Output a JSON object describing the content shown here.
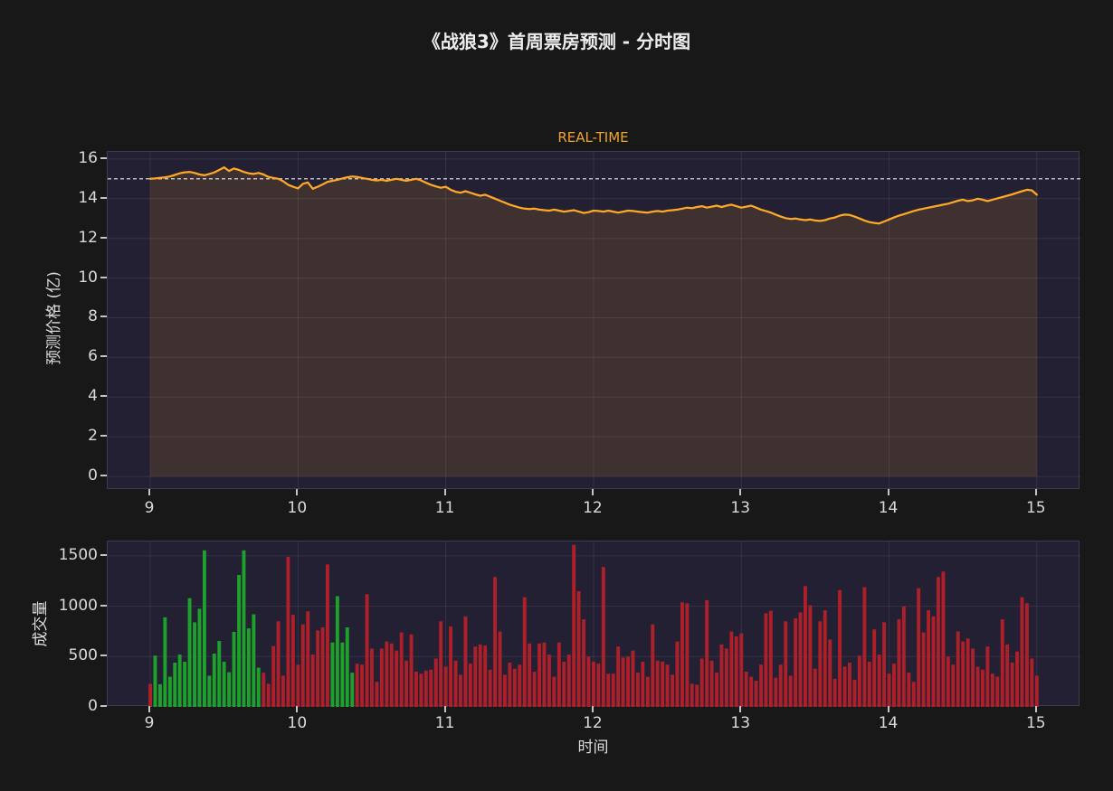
{
  "title": "《战狼3》首周票房预测 - 分时图",
  "accent_colors": {
    "line_orange": "#ffa826",
    "bar_up_green": "#1da12b",
    "bar_down_red": "#ad1f29",
    "plot_background": "#222032",
    "figure_background": "#181818",
    "reference_dash": "#eceef2"
  },
  "chart_data": [
    {
      "type": "line",
      "title_label": "REAL-TIME",
      "ylabel": "预测价格 (亿)",
      "x_start_hour": 9,
      "x_step_minutes": 2,
      "x_ticks": [
        9,
        10,
        11,
        12,
        13,
        14,
        15
      ],
      "y_ticks": [
        0,
        2,
        4,
        6,
        8,
        10,
        12,
        14,
        16
      ],
      "x_range_hours": [
        8.712,
        15.295
      ],
      "y_range": [
        -0.68,
        16.36
      ],
      "reference_line_y": 15,
      "line_color": "#ffa826",
      "fill_color": "rgba(255,168,38,0.13)",
      "grid": true,
      "values": [
        15.0,
        15.02,
        15.05,
        15.08,
        15.12,
        15.2,
        15.28,
        15.33,
        15.35,
        15.3,
        15.22,
        15.18,
        15.25,
        15.32,
        15.45,
        15.58,
        15.4,
        15.52,
        15.45,
        15.35,
        15.28,
        15.25,
        15.3,
        15.22,
        15.1,
        15.05,
        15.0,
        14.88,
        14.7,
        14.6,
        14.52,
        14.75,
        14.82,
        14.5,
        14.6,
        14.72,
        14.85,
        14.9,
        14.95,
        15.02,
        15.08,
        15.12,
        15.1,
        15.05,
        15.0,
        14.95,
        14.92,
        14.95,
        14.9,
        14.95,
        15.0,
        14.95,
        14.9,
        14.95,
        15.0,
        14.92,
        14.8,
        14.7,
        14.62,
        14.55,
        14.6,
        14.45,
        14.35,
        14.3,
        14.38,
        14.3,
        14.22,
        14.15,
        14.2,
        14.1,
        14.0,
        13.9,
        13.8,
        13.7,
        13.62,
        13.55,
        13.5,
        13.48,
        13.5,
        13.45,
        13.42,
        13.4,
        13.45,
        13.4,
        13.35,
        13.38,
        13.42,
        13.35,
        13.28,
        13.32,
        13.4,
        13.38,
        13.35,
        13.4,
        13.35,
        13.3,
        13.35,
        13.4,
        13.38,
        13.35,
        13.32,
        13.3,
        13.35,
        13.38,
        13.35,
        13.4,
        13.42,
        13.45,
        13.5,
        13.55,
        13.52,
        13.58,
        13.62,
        13.55,
        13.6,
        13.65,
        13.58,
        13.65,
        13.7,
        13.62,
        13.55,
        13.6,
        13.65,
        13.55,
        13.45,
        13.38,
        13.3,
        13.2,
        13.1,
        13.02,
        12.98,
        13.0,
        12.95,
        12.92,
        12.95,
        12.9,
        12.88,
        12.92,
        13.0,
        13.05,
        13.15,
        13.2,
        13.18,
        13.1,
        13.0,
        12.9,
        12.82,
        12.78,
        12.75,
        12.85,
        12.95,
        13.05,
        13.15,
        13.22,
        13.3,
        13.38,
        13.45,
        13.5,
        13.55,
        13.6,
        13.65,
        13.7,
        13.75,
        13.82,
        13.9,
        13.95,
        13.88,
        13.92,
        14.0,
        13.95,
        13.88,
        13.95,
        14.02,
        14.08,
        14.15,
        14.22,
        14.3,
        14.38,
        14.45,
        14.42,
        14.2
      ]
    },
    {
      "type": "bar",
      "ylabel": "成交量",
      "xlabel": "时间",
      "x_start_hour": 9,
      "x_step_minutes": 2,
      "x_ticks": [
        9,
        10,
        11,
        12,
        13,
        14,
        15
      ],
      "y_ticks": [
        0,
        500,
        1000,
        1500
      ],
      "x_range_hours": [
        8.712,
        15.295
      ],
      "y_range": [
        0,
        1643
      ],
      "up_color": "#1da12b",
      "down_color": "#ad1f29",
      "green_bar_index_ranges": [
        [
          1,
          22
        ],
        [
          37,
          41
        ]
      ],
      "grid": true,
      "values": [
        230,
        510,
        225,
        890,
        300,
        440,
        520,
        450,
        1080,
        840,
        975,
        1555,
        310,
        530,
        655,
        450,
        345,
        745,
        1310,
        1555,
        780,
        920,
        390,
        340,
        230,
        605,
        850,
        310,
        1490,
        915,
        420,
        820,
        950,
        520,
        760,
        790,
        1415,
        640,
        1100,
        640,
        790,
        340,
        430,
        420,
        1120,
        580,
        250,
        580,
        650,
        630,
        560,
        740,
        460,
        720,
        350,
        330,
        360,
        370,
        480,
        850,
        400,
        800,
        460,
        320,
        900,
        430,
        600,
        620,
        610,
        370,
        1290,
        750,
        320,
        440,
        380,
        420,
        1090,
        630,
        350,
        630,
        640,
        520,
        300,
        640,
        450,
        520,
        1610,
        1150,
        870,
        500,
        450,
        430,
        1390,
        330,
        330,
        600,
        490,
        500,
        560,
        340,
        450,
        300,
        820,
        460,
        450,
        420,
        320,
        650,
        1040,
        1030,
        230,
        220,
        480,
        1060,
        460,
        340,
        620,
        580,
        750,
        700,
        730,
        350,
        300,
        260,
        420,
        930,
        955,
        290,
        420,
        850,
        310,
        880,
        940,
        1200,
        1010,
        380,
        850,
        960,
        670,
        280,
        1160,
        400,
        440,
        270,
        510,
        1190,
        450,
        770,
        520,
        840,
        330,
        430,
        870,
        1000,
        340,
        250,
        1180,
        740,
        960,
        900,
        1290,
        1345,
        500,
        420,
        750,
        650,
        680,
        580,
        400,
        370,
        600,
        330,
        300,
        870,
        620,
        440,
        550,
        1090,
        1030,
        480,
        310
      ]
    }
  ]
}
